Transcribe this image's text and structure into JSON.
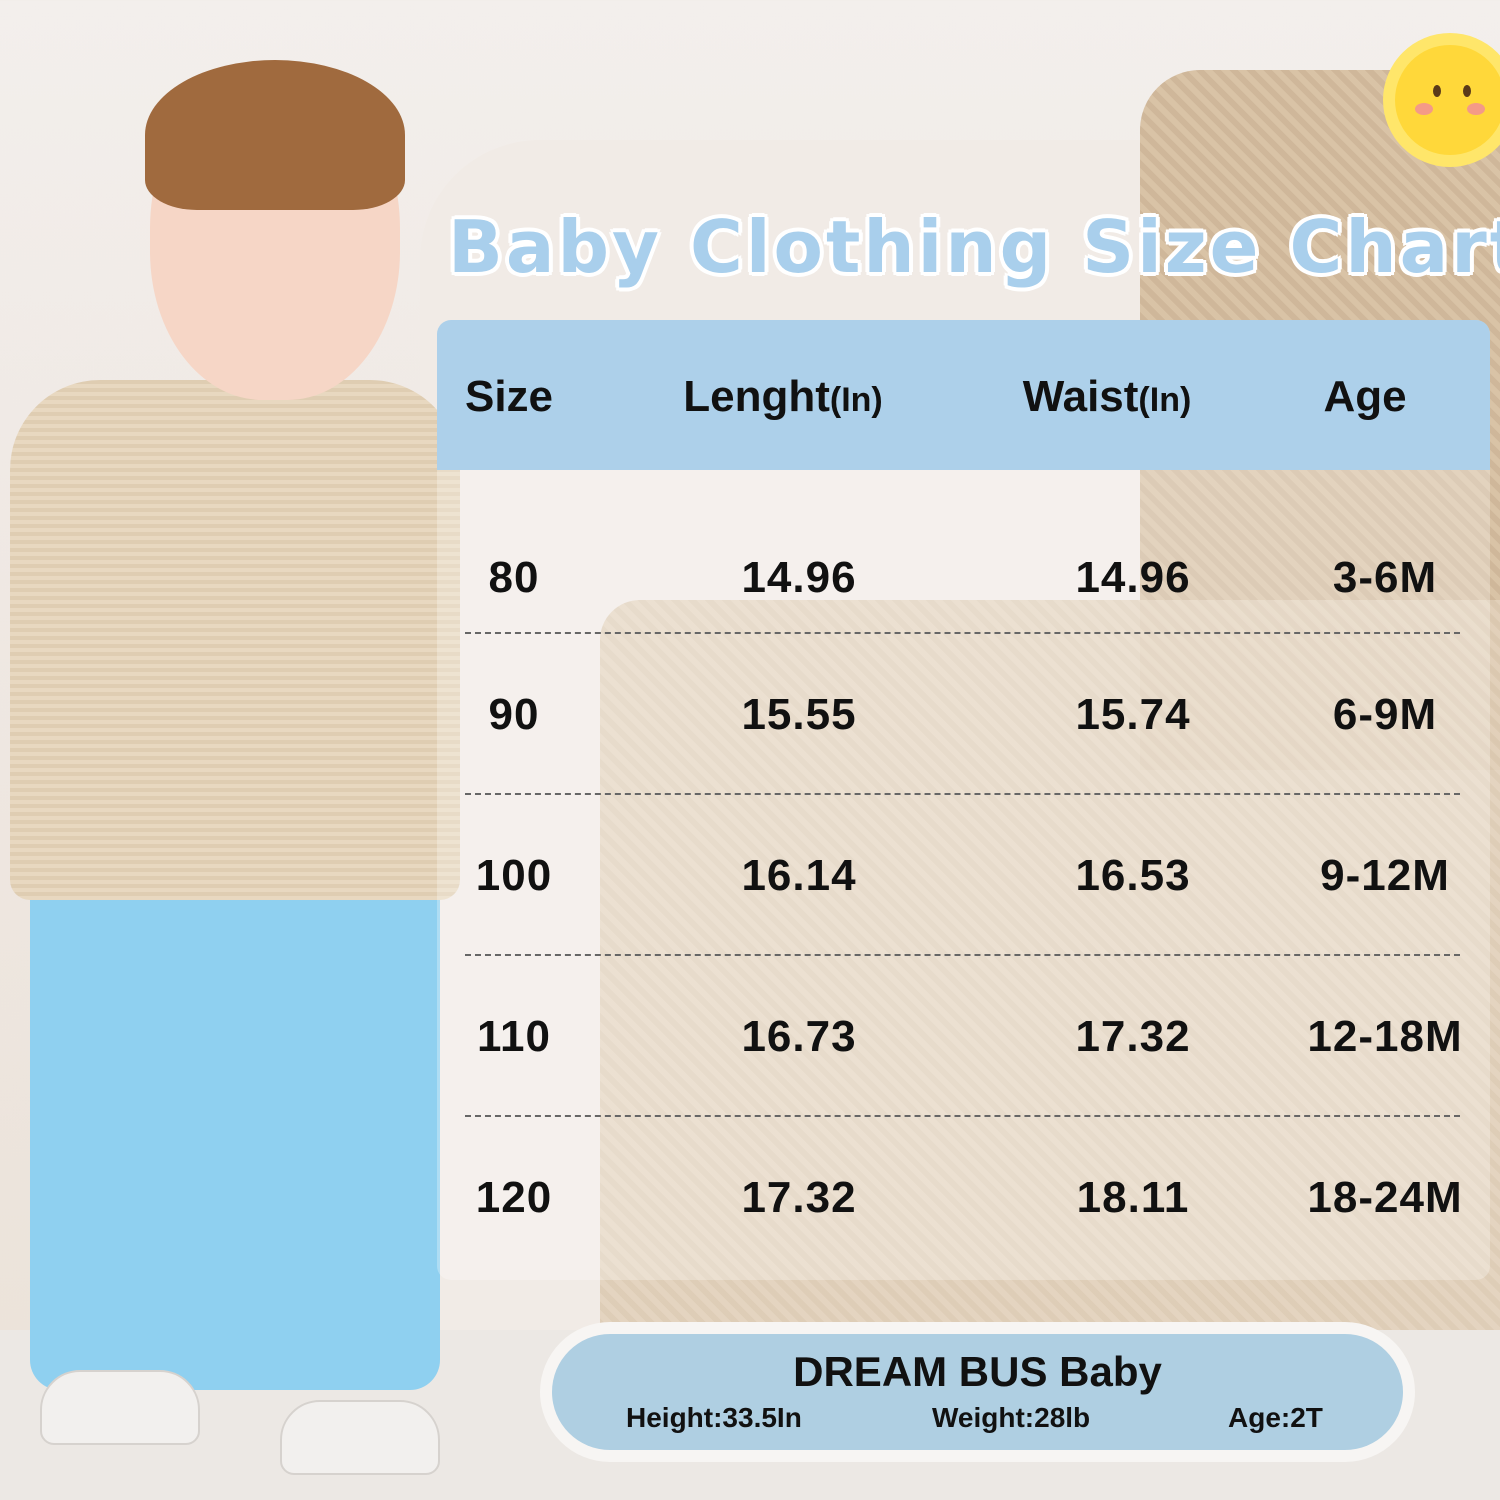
{
  "title": "Baby Clothing Size Chart",
  "table": {
    "headers": [
      {
        "label": "Size",
        "unit": ""
      },
      {
        "label": "Lenght",
        "unit": "(In)"
      },
      {
        "label": "Waist",
        "unit": "(In)"
      },
      {
        "label": "Age",
        "unit": ""
      }
    ],
    "rows": [
      {
        "size": "80",
        "length": "14.96",
        "waist": "14.96",
        "age": "3-6M"
      },
      {
        "size": "90",
        "length": "15.55",
        "waist": "15.74",
        "age": "6-9M"
      },
      {
        "size": "100",
        "length": "16.14",
        "waist": "16.53",
        "age": "9-12M"
      },
      {
        "size": "110",
        "length": "16.73",
        "waist": "17.32",
        "age": "12-18M"
      },
      {
        "size": "120",
        "length": "17.32",
        "waist": "18.11",
        "age": "18-24M"
      }
    ]
  },
  "model": {
    "name": "DREAM BUS Baby",
    "height": "Height:33.5In",
    "weight": "Weight:28lb",
    "age": "Age:2T"
  },
  "colors": {
    "header_blue": "#add0ea",
    "title_blue": "#a9cfec",
    "pants_blue": "#8fd0f0"
  }
}
